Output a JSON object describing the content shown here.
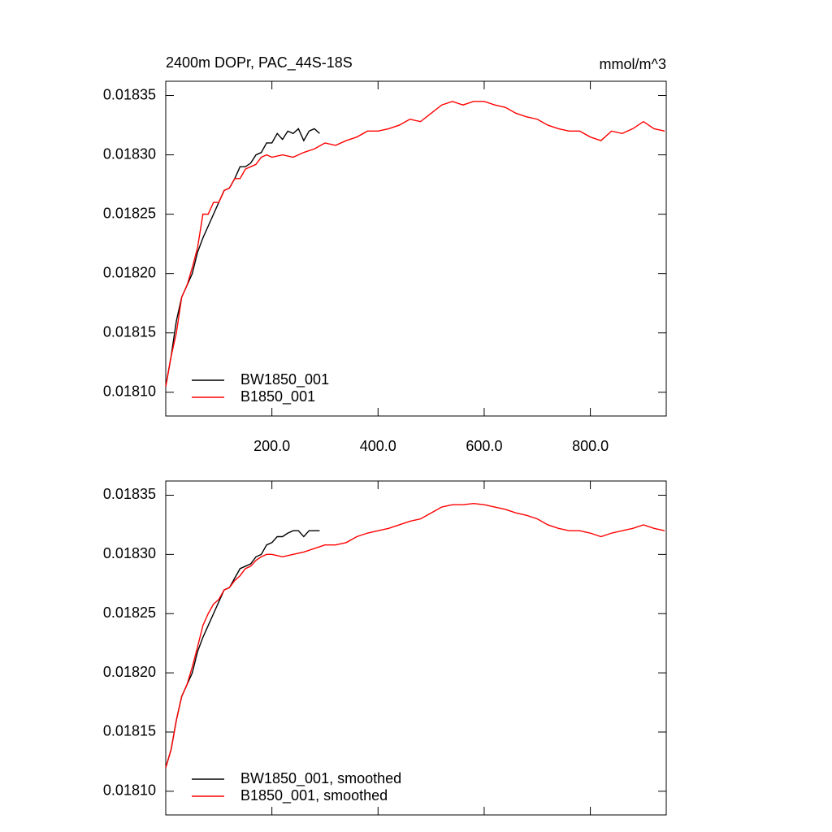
{
  "chart_data": [
    {
      "type": "line",
      "title": "2400m DOPr, PAC_44S-18S",
      "units": "mmol/m^3",
      "xlim": [
        0,
        943
      ],
      "ylim": [
        0.01808,
        0.018362
      ],
      "xticks": [
        {
          "value": 200,
          "label": "200.0"
        },
        {
          "value": 400,
          "label": "400.0"
        },
        {
          "value": 600,
          "label": "600.0"
        },
        {
          "value": 800,
          "label": "800.0"
        }
      ],
      "xtick_labels": true,
      "yticks": [
        {
          "value": 0.0181,
          "label": "0.01810"
        },
        0.01815,
        {
          "value": 0.0182,
          "label": "0.01820"
        },
        0.01825,
        {
          "value": 0.0183,
          "label": "0.01830"
        },
        0.01835
      ],
      "legend": "bottom-left",
      "series": [
        {
          "name": "BW1850_001",
          "color": "#000000",
          "x": [
            0,
            10,
            20,
            30,
            40,
            50,
            60,
            70,
            80,
            90,
            100,
            110,
            120,
            130,
            140,
            150,
            160,
            170,
            180,
            190,
            200,
            210,
            220,
            230,
            240,
            250,
            260,
            270,
            280,
            290
          ],
          "values": [
            0.018105,
            0.01813,
            0.01816,
            0.01818,
            0.01819,
            0.0182,
            0.018218,
            0.01823,
            0.01824,
            0.01825,
            0.01826,
            0.01827,
            0.018272,
            0.01828,
            0.01829,
            0.01829,
            0.018293,
            0.0183,
            0.018302,
            0.01831,
            0.01831,
            0.018318,
            0.018313,
            0.01832,
            0.018318,
            0.018322,
            0.018312,
            0.01832,
            0.018322,
            0.018318
          ]
        },
        {
          "name": "B1850_001",
          "color": "#ff0000",
          "x": [
            0,
            10,
            20,
            30,
            40,
            50,
            60,
            70,
            80,
            90,
            100,
            110,
            120,
            130,
            140,
            150,
            160,
            170,
            180,
            190,
            200,
            220,
            240,
            260,
            280,
            300,
            320,
            340,
            360,
            380,
            400,
            420,
            440,
            460,
            480,
            500,
            520,
            540,
            560,
            580,
            600,
            620,
            640,
            660,
            680,
            700,
            720,
            740,
            760,
            780,
            800,
            820,
            840,
            860,
            880,
            900,
            920,
            940
          ],
          "values": [
            0.018105,
            0.01813,
            0.01815,
            0.01818,
            0.01819,
            0.018205,
            0.018222,
            0.01825,
            0.01825,
            0.01826,
            0.01826,
            0.01827,
            0.018272,
            0.01828,
            0.01828,
            0.018288,
            0.01829,
            0.018292,
            0.018298,
            0.0183,
            0.018298,
            0.0183,
            0.018298,
            0.018302,
            0.018305,
            0.01831,
            0.018308,
            0.018312,
            0.018315,
            0.01832,
            0.01832,
            0.018322,
            0.018325,
            0.01833,
            0.018328,
            0.018335,
            0.018342,
            0.018345,
            0.018342,
            0.018345,
            0.018345,
            0.018342,
            0.01834,
            0.018335,
            0.018332,
            0.01833,
            0.018325,
            0.018322,
            0.01832,
            0.01832,
            0.018315,
            0.018312,
            0.01832,
            0.018318,
            0.018322,
            0.018328,
            0.018322,
            0.01832
          ]
        }
      ]
    },
    {
      "type": "line",
      "xlim": [
        0,
        943
      ],
      "ylim": [
        0.01808,
        0.018362
      ],
      "xticks": [
        200,
        400,
        600,
        800
      ],
      "xtick_labels": false,
      "yticks": [
        {
          "value": 0.0181,
          "label": "0.01810"
        },
        0.01815,
        {
          "value": 0.0182,
          "label": "0.01820"
        },
        0.01825,
        {
          "value": 0.0183,
          "label": "0.01830"
        },
        0.01835
      ],
      "legend": "bottom-left",
      "series": [
        {
          "name": "BW1850_001, smoothed",
          "color": "#000000",
          "x": [
            0,
            10,
            20,
            30,
            40,
            50,
            60,
            70,
            80,
            90,
            100,
            110,
            120,
            130,
            140,
            150,
            160,
            170,
            180,
            190,
            200,
            210,
            220,
            230,
            240,
            250,
            260,
            270,
            280,
            290
          ],
          "values": [
            0.01812,
            0.018135,
            0.01816,
            0.01818,
            0.01819,
            0.0182,
            0.018218,
            0.01823,
            0.01824,
            0.01825,
            0.01826,
            0.01827,
            0.018272,
            0.01828,
            0.018288,
            0.01829,
            0.018292,
            0.018298,
            0.0183,
            0.018308,
            0.01831,
            0.018315,
            0.018315,
            0.018318,
            0.01832,
            0.01832,
            0.018315,
            0.01832,
            0.01832,
            0.01832
          ]
        },
        {
          "name": "B1850_001, smoothed",
          "color": "#ff0000",
          "x": [
            0,
            10,
            20,
            30,
            40,
            50,
            60,
            70,
            80,
            90,
            100,
            110,
            120,
            130,
            140,
            150,
            160,
            170,
            180,
            190,
            200,
            220,
            240,
            260,
            280,
            300,
            320,
            340,
            360,
            380,
            400,
            420,
            440,
            460,
            480,
            500,
            520,
            540,
            560,
            580,
            600,
            620,
            640,
            660,
            680,
            700,
            720,
            740,
            760,
            780,
            800,
            820,
            840,
            860,
            880,
            900,
            920,
            940
          ],
          "values": [
            0.01812,
            0.018135,
            0.01816,
            0.01818,
            0.01819,
            0.018205,
            0.018222,
            0.01824,
            0.01825,
            0.018258,
            0.018262,
            0.01827,
            0.018272,
            0.018278,
            0.018282,
            0.018288,
            0.01829,
            0.018295,
            0.018298,
            0.0183,
            0.0183,
            0.018298,
            0.0183,
            0.018302,
            0.018305,
            0.018308,
            0.018308,
            0.01831,
            0.018315,
            0.018318,
            0.01832,
            0.018322,
            0.018325,
            0.018328,
            0.01833,
            0.018335,
            0.01834,
            0.018342,
            0.018342,
            0.018343,
            0.018342,
            0.01834,
            0.018338,
            0.018335,
            0.018333,
            0.01833,
            0.018325,
            0.018322,
            0.01832,
            0.01832,
            0.018318,
            0.018315,
            0.018318,
            0.01832,
            0.018322,
            0.018325,
            0.018322,
            0.01832
          ]
        }
      ]
    }
  ]
}
